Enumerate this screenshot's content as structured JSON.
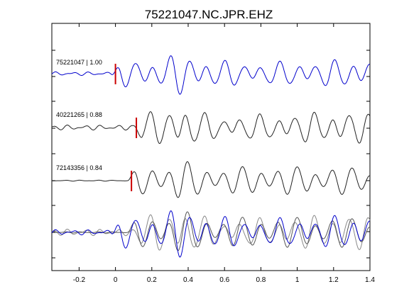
{
  "chart_data": {
    "type": "line",
    "title": "75221047.NC.JPR.EHZ",
    "xlabel": "",
    "ylabel": "",
    "xlim": [
      -0.35,
      1.4
    ],
    "xticks": [
      -0.2,
      0,
      0.2,
      0.4,
      0.6,
      0.8,
      1,
      1.2,
      1.4
    ],
    "xtick_labels": [
      "-0.2",
      "0",
      "0.2",
      "0.4",
      "0.6",
      "0.8",
      "1",
      "1.2",
      "1.4"
    ],
    "grid": false,
    "legend": "none",
    "series": [
      {
        "label": "75221047 | 1.00",
        "color": "#0000cc",
        "pick_time": 0.0,
        "pick_color": "#cc0000"
      },
      {
        "label": "40221265 | 0.88",
        "color": "#222222",
        "pick_time": 0.115,
        "pick_color": "#cc0000"
      },
      {
        "label": "72143356 | 0.84",
        "color": "#222222",
        "pick_time": 0.088,
        "pick_color": "#cc0000"
      }
    ],
    "overlay": {
      "colors": [
        "#888888",
        "#555555",
        "#0000cc"
      ]
    },
    "reference_peak_time": 0.35
  }
}
